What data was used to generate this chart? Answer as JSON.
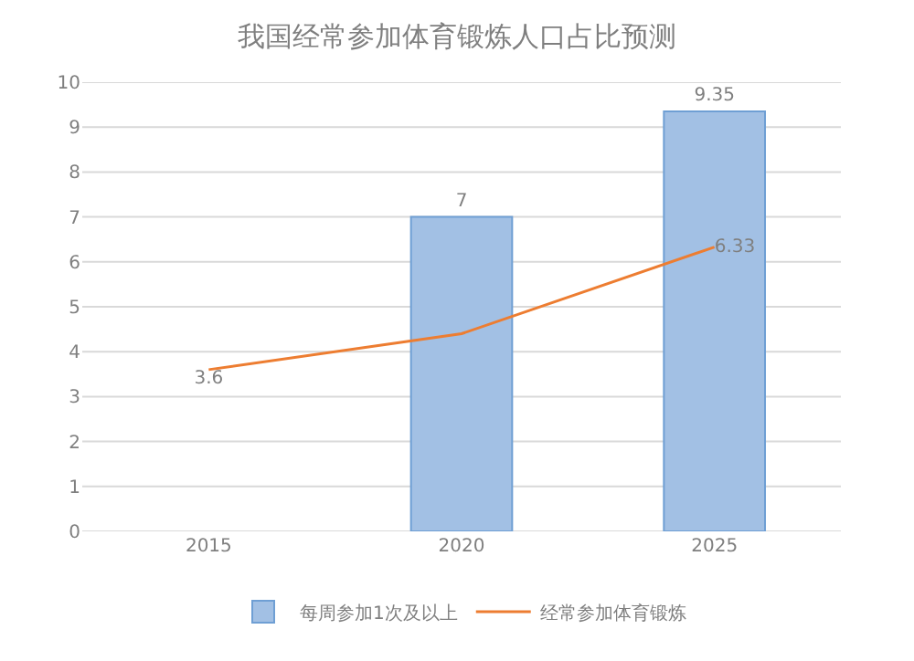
{
  "chart_data": {
    "type": "bar",
    "title": "我国经常参加体育锻炼人口占比预测",
    "categories": [
      "2015",
      "2020",
      "2025"
    ],
    "series": [
      {
        "name": "每周参加1次及以上",
        "color": "#a2c0e4",
        "values": [
          null,
          7,
          9.35
        ],
        "value_labels": [
          null,
          "7",
          "9.35"
        ]
      },
      {
        "name": "经常参加体育锻炼",
        "type": "line",
        "color": "#ed7d31",
        "values": [
          3.6,
          4.4,
          6.33
        ],
        "value_labels": [
          "3.6",
          null,
          "6.33"
        ]
      }
    ],
    "ylim": [
      0,
      10
    ],
    "yticks": [
      0,
      1,
      2,
      3,
      4,
      5,
      6,
      7,
      8,
      9,
      10
    ],
    "grid": "y",
    "legend": "bottom",
    "marker": "none",
    "line_style": "solid"
  }
}
